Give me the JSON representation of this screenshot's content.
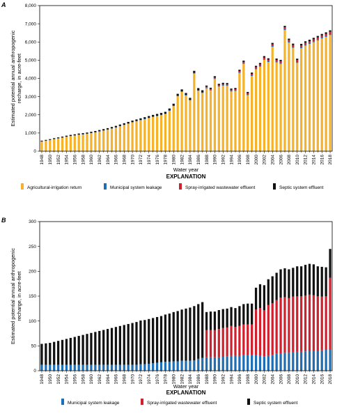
{
  "colors": {
    "agricultural": "#f5b22a",
    "municipal": "#1f6db3",
    "spray": "#d0202d",
    "septic": "#111111"
  },
  "chart_data": [
    {
      "panel_label": "A",
      "type": "bar",
      "stacked": true,
      "xlabel": "Water year",
      "ylabel_lines": [
        "Estimated potential annual anthropogenic",
        "recharge, in acre-feet"
      ],
      "ylim": [
        0,
        8000
      ],
      "yticks": [
        "0",
        "1,000",
        "2,000",
        "3,000",
        "4,000",
        "5,000",
        "6,000",
        "7,000",
        "8,000"
      ],
      "xtick_labels": [
        "1948",
        "1950",
        "1952",
        "1954",
        "1956",
        "1958",
        "1960",
        "1962",
        "1964",
        "1966",
        "1968",
        "1970",
        "1972",
        "1974",
        "1976",
        "1978",
        "1980",
        "1982",
        "1984",
        "1986",
        "1988",
        "1990",
        "1992",
        "1994",
        "1996",
        "1998",
        "2000",
        "2002",
        "2004",
        "2006",
        "2008",
        "2010",
        "2012",
        "2014",
        "2016",
        "2018"
      ],
      "x_start": 1948,
      "explanation_title": "EXPLANATION",
      "legend": [
        {
          "name": "Agricultural-irrigation return",
          "color_key": "agricultural"
        },
        {
          "name": "Municipal system leakage",
          "color_key": "municipal"
        },
        {
          "name": "Spray-irrigated wastewater effluent",
          "color_key": "spray"
        },
        {
          "name": "Septic system effluent",
          "color_key": "septic"
        }
      ],
      "series": [
        {
          "name": "Agricultural-irrigation return",
          "color_key": "agricultural",
          "values": [
            530,
            570,
            610,
            660,
            700,
            740,
            790,
            830,
            860,
            900,
            920,
            950,
            990,
            1030,
            1080,
            1130,
            1180,
            1240,
            1300,
            1370,
            1440,
            1510,
            1580,
            1640,
            1700,
            1760,
            1820,
            1880,
            1930,
            1980,
            2040,
            2220,
            2480,
            3020,
            3260,
            3060,
            2790,
            4270,
            3320,
            3200,
            3460,
            3340,
            3970,
            3550,
            3600,
            3590,
            3280,
            3310,
            4300,
            4800,
            3080,
            4130,
            4500,
            4650,
            5020,
            4900,
            5740,
            4880,
            4800,
            6660,
            5960,
            5680,
            4850,
            5660,
            5800,
            5890,
            5990,
            6090,
            6200,
            6280,
            6380
          ],
          "note": "values in acre-feet, one per water year 1948-2018"
        },
        {
          "name": "Municipal system leakage",
          "color_key": "municipal",
          "values": [
            10,
            10,
            10,
            11,
            11,
            12,
            12,
            12,
            13,
            13,
            13,
            14,
            14,
            14,
            15,
            15,
            15,
            16,
            16,
            17,
            17,
            18,
            18,
            19,
            19,
            20,
            20,
            20,
            21,
            22,
            23,
            25,
            26,
            27,
            27,
            28,
            29,
            30,
            30,
            31,
            31,
            32,
            33,
            33,
            34,
            34,
            35,
            36,
            37,
            38,
            38,
            39,
            40,
            40,
            41,
            42,
            42,
            43,
            44,
            45,
            45,
            45,
            46,
            46,
            47,
            47,
            48,
            48,
            49,
            49,
            50
          ]
        },
        {
          "name": "Spray-irrigated wastewater effluent",
          "color_key": "spray",
          "values": [
            0,
            0,
            0,
            0,
            0,
            0,
            0,
            0,
            0,
            0,
            0,
            0,
            0,
            0,
            0,
            0,
            0,
            0,
            0,
            0,
            0,
            0,
            0,
            0,
            0,
            0,
            0,
            0,
            0,
            0,
            0,
            0,
            0,
            0,
            0,
            0,
            0,
            0,
            0,
            0,
            55,
            55,
            55,
            55,
            60,
            60,
            60,
            60,
            70,
            70,
            70,
            80,
            80,
            85,
            90,
            90,
            95,
            95,
            100,
            105,
            105,
            110,
            110,
            115,
            115,
            110,
            110,
            115,
            115,
            120,
            130
          ]
        },
        {
          "name": "Septic system effluent",
          "color_key": "septic",
          "values": [
            40,
            42,
            44,
            46,
            48,
            50,
            52,
            54,
            56,
            58,
            60,
            62,
            64,
            66,
            68,
            70,
            72,
            74,
            76,
            78,
            80,
            82,
            84,
            86,
            88,
            90,
            92,
            94,
            96,
            98,
            100,
            102,
            104,
            106,
            108,
            110,
            112,
            114,
            116,
            118,
            60,
            60,
            62,
            62,
            64,
            64,
            66,
            66,
            68,
            68,
            68,
            70,
            70,
            70,
            72,
            72,
            72,
            72,
            74,
            74,
            74,
            74,
            76,
            76,
            76,
            78,
            78,
            78,
            78,
            80,
            80
          ]
        }
      ]
    },
    {
      "panel_label": "B",
      "type": "bar",
      "stacked": true,
      "xlabel": "Water year",
      "ylabel_lines": [
        "Estimated potential annual anthropogenic",
        "recharge, in acre-feet"
      ],
      "ylim": [
        0,
        300
      ],
      "yticks": [
        "0",
        "50",
        "100",
        "150",
        "200",
        "250",
        "300"
      ],
      "xtick_labels": [
        "1948",
        "1950",
        "1952",
        "1954",
        "1956",
        "1958",
        "1960",
        "1962",
        "1964",
        "1966",
        "1968",
        "1970",
        "1972",
        "1974",
        "1976",
        "1978",
        "1980",
        "1982",
        "1984",
        "1986",
        "1988",
        "1990",
        "1992",
        "1994",
        "1996",
        "1998",
        "2000",
        "2002",
        "2004",
        "2006",
        "2008",
        "2010",
        "2012",
        "2014",
        "2016",
        "2018"
      ],
      "x_start": 1948,
      "explanation_title": "EXPLANATION",
      "legend": [
        {
          "name": "Municipal system leakage",
          "color_key": "municipal"
        },
        {
          "name": "Spray-irrigated wastewater effluent",
          "color_key": "spray"
        },
        {
          "name": "Septic system effluent",
          "color_key": "septic"
        }
      ],
      "series": [
        {
          "name": "Municipal system leakage",
          "color_key": "municipal",
          "values": [
            12,
            12,
            12,
            12,
            12,
            12,
            12,
            12,
            12,
            12,
            12,
            12,
            12,
            12,
            12,
            12,
            12,
            12,
            12,
            12,
            12,
            12,
            12,
            12,
            13,
            13,
            14,
            15,
            16,
            17,
            18,
            18,
            19,
            19,
            20,
            20,
            20,
            21,
            24,
            26,
            27,
            27,
            27,
            27,
            28,
            29,
            30,
            30,
            30,
            31,
            31,
            31,
            31,
            30,
            29,
            30,
            32,
            34,
            35,
            36,
            36,
            37,
            38,
            38,
            39,
            40,
            40,
            40,
            41,
            42,
            42
          ]
        },
        {
          "name": "Spray-irrigated wastewater effluent",
          "color_key": "spray",
          "values": [
            0,
            0,
            0,
            0,
            0,
            0,
            0,
            0,
            0,
            0,
            0,
            0,
            0,
            0,
            0,
            0,
            0,
            0,
            0,
            0,
            0,
            0,
            0,
            0,
            0,
            0,
            0,
            0,
            0,
            0,
            0,
            0,
            0,
            0,
            0,
            0,
            0,
            0,
            0,
            0,
            55,
            55,
            55,
            57,
            58,
            58,
            60,
            58,
            60,
            62,
            62,
            62,
            92,
            96,
            93,
            102,
            104,
            108,
            112,
            112,
            110,
            112,
            112,
            112,
            112,
            113,
            112,
            110,
            108,
            108,
            145
          ]
        },
        {
          "name": "Septic system effluent",
          "color_key": "septic",
          "values": [
            42,
            43,
            44,
            46,
            48,
            50,
            52,
            54,
            56,
            58,
            60,
            62,
            64,
            66,
            68,
            70,
            72,
            74,
            76,
            78,
            80,
            82,
            84,
            86,
            88,
            89,
            90,
            91,
            92,
            93,
            95,
            97,
            99,
            101,
            103,
            105,
            107,
            109,
            110,
            112,
            36,
            37,
            37,
            38,
            38,
            38,
            38,
            38,
            40,
            41,
            42,
            42,
            44,
            48,
            50,
            52,
            54,
            55,
            57,
            58,
            58,
            58,
            60,
            60,
            62,
            62,
            62,
            60,
            60,
            58,
            58
          ]
        }
      ]
    }
  ]
}
